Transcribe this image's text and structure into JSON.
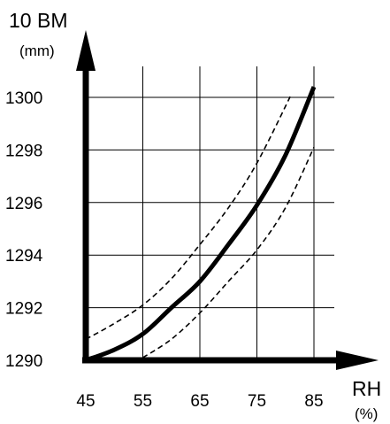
{
  "chart_data": {
    "type": "line",
    "ylabel": "10 BM",
    "yunit": "(mm)",
    "xlabel": "RH",
    "xunit": "(%)",
    "xlim": [
      45,
      85
    ],
    "ylim": [
      1290,
      1300
    ],
    "x_ticks": [
      45,
      55,
      65,
      75,
      85
    ],
    "y_ticks": [
      1290,
      1292,
      1294,
      1296,
      1298,
      1300
    ],
    "grid": true,
    "series": [
      {
        "style": "solid",
        "x": [
          45,
          50,
          55,
          60,
          65,
          70,
          75,
          80,
          85
        ],
        "y": [
          1290.0,
          1290.4,
          1291.0,
          1292.0,
          1293.0,
          1294.4,
          1295.9,
          1297.8,
          1300.4
        ]
      },
      {
        "style": "dashed",
        "x": [
          45,
          50,
          55,
          60,
          65,
          70,
          75,
          81
        ],
        "y": [
          1290.8,
          1291.4,
          1292.1,
          1293.1,
          1294.4,
          1295.8,
          1297.5,
          1300.1
        ]
      },
      {
        "style": "dashed",
        "x": [
          55,
          60,
          65,
          70,
          75,
          80,
          85
        ],
        "y": [
          1290.1,
          1290.8,
          1291.8,
          1293.0,
          1294.2,
          1295.8,
          1298.1
        ]
      }
    ],
    "colors": {
      "lines": "#000000",
      "grid": "#000000",
      "background": "#ffffff"
    }
  }
}
